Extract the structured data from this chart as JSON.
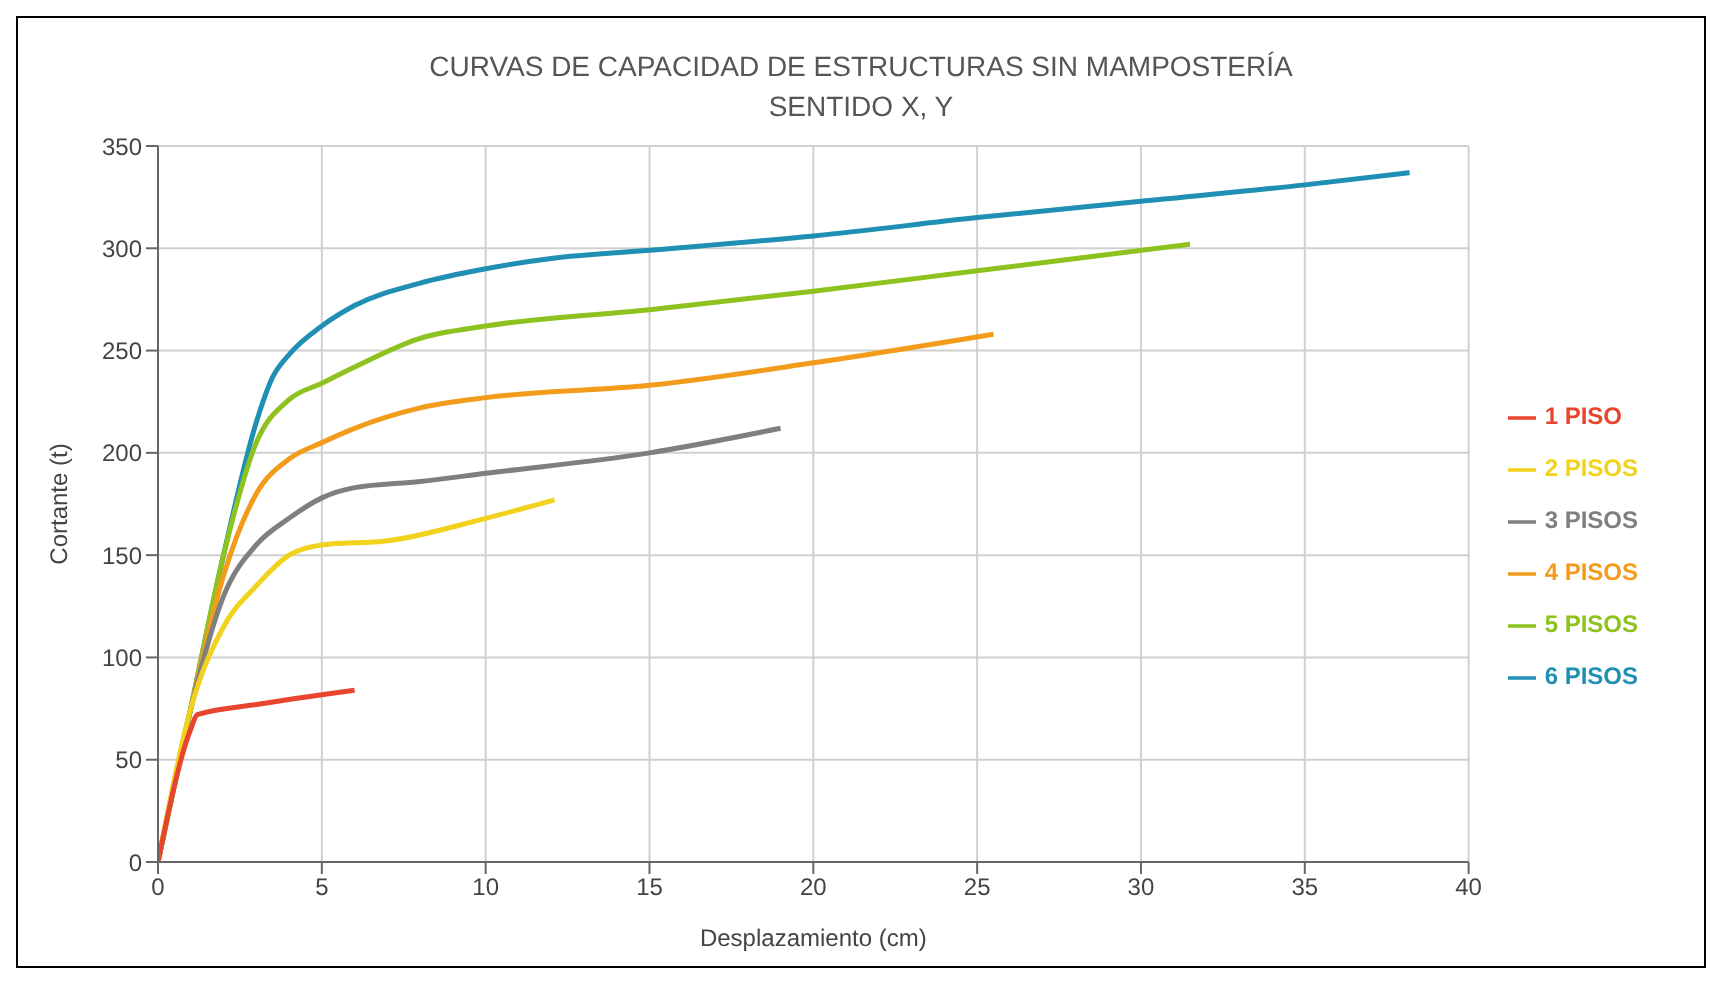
{
  "chart_data": {
    "type": "line",
    "title": "CURVAS DE CAPACIDAD DE ESTRUCTURAS SIN MAMPOSTERÍA",
    "subtitle": "SENTIDO X, Y",
    "xlabel": "Desplazamiento (cm)",
    "ylabel": "Cortante (t)",
    "xlim": [
      0,
      40
    ],
    "xticks": [
      0,
      5,
      10,
      15,
      20,
      25,
      30,
      35,
      40
    ],
    "ylim": [
      0,
      350
    ],
    "yticks": [
      0,
      50,
      100,
      150,
      200,
      250,
      300,
      350
    ],
    "grid": true,
    "legend": "right",
    "marker": "none",
    "line_style": "solid",
    "series": [
      {
        "name": "6 PISOS",
        "color": "#1f8fb4",
        "x": [
          0,
          1,
          2,
          3,
          3.5,
          4,
          5,
          6,
          8,
          10,
          12,
          15,
          20,
          25,
          30,
          35,
          38.2
        ],
        "values": [
          0,
          75,
          150,
          215,
          237,
          248,
          262,
          272,
          283,
          290,
          295,
          299,
          306,
          315,
          323,
          331,
          337
        ]
      },
      {
        "name": "5 PISOS",
        "color": "#8dc21f",
        "x": [
          0,
          1,
          2,
          3,
          4,
          5,
          6,
          8,
          10,
          15,
          20,
          25,
          31.5
        ],
        "values": [
          0,
          75,
          150,
          205,
          226,
          234,
          242,
          256,
          262,
          270,
          279,
          289,
          302
        ]
      },
      {
        "name": "4 PISOS",
        "color": "#f39c1c",
        "x": [
          0,
          1,
          2,
          3,
          4,
          5,
          6,
          8,
          10,
          15,
          20,
          25.5
        ],
        "values": [
          0,
          75,
          140,
          180,
          197,
          205,
          212,
          222,
          227,
          233,
          244,
          258
        ]
      },
      {
        "name": "3 PISOS",
        "color": "#7f7f7f",
        "x": [
          0,
          1,
          2,
          3,
          4,
          5,
          6,
          8,
          10,
          15,
          19
        ],
        "values": [
          0,
          75,
          130,
          155,
          168,
          178,
          183,
          186,
          190,
          200,
          212
        ]
      },
      {
        "name": "2 PISOS",
        "color": "#f2d21c",
        "x": [
          0,
          1,
          2,
          3,
          4,
          5,
          7,
          10,
          12.1
        ],
        "values": [
          0,
          75,
          115,
          135,
          150,
          155,
          157,
          168,
          177
        ]
      },
      {
        "name": "1 PISO",
        "color": "#e8452f",
        "x": [
          0,
          1,
          1.2,
          3,
          6
        ],
        "values": [
          0,
          65,
          72,
          77,
          84
        ]
      }
    ]
  }
}
